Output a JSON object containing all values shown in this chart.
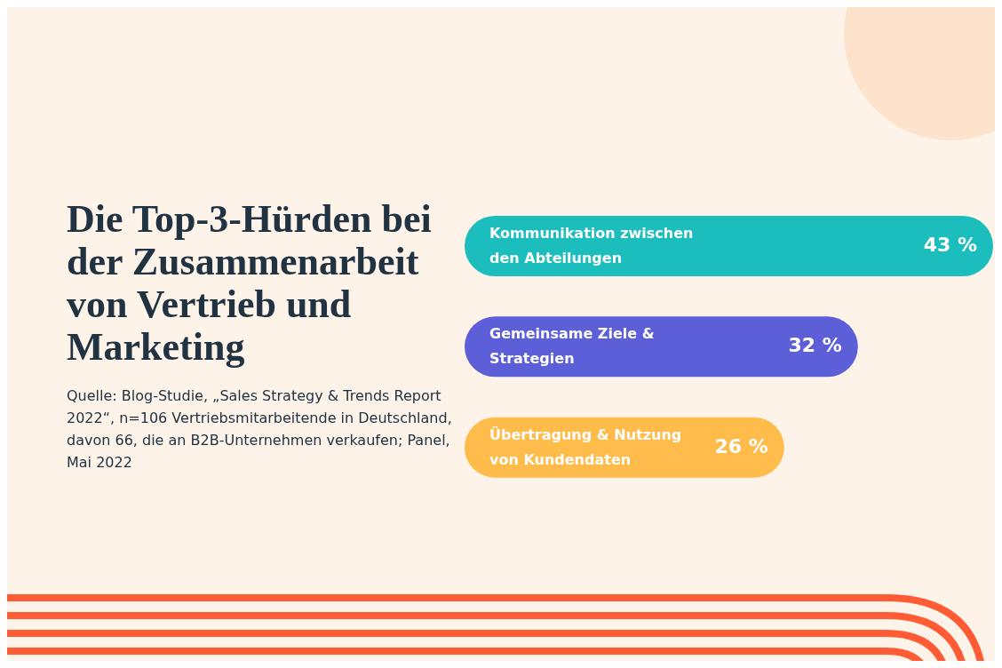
{
  "chart_data": {
    "type": "bar",
    "orientation": "horizontal",
    "title": "Die Top-3-Hürden bei der Zusammenarbeit von Vertrieb und Marketing",
    "categories": [
      "Kommunikation zwischen den Abteilungen",
      "Gemeinsame Ziele & Strategien",
      "Übertragung & Nutzung von Kundendaten"
    ],
    "values": [
      43,
      32,
      26
    ],
    "colors": [
      "#1cbdbd",
      "#5d5fd8",
      "#ffbc4b"
    ],
    "value_labels": [
      "43 %",
      "32 %",
      "26 %"
    ],
    "annotations": [
      "Quelle: Blog-Studie, „Sales Strategy & Trends Report 2022“, n=106 Vertriebsmitarbeitende in Deutschland, davon 66, die an B2B-Unternehmen verkaufen; Panel, Mai 2022"
    ]
  }
}
